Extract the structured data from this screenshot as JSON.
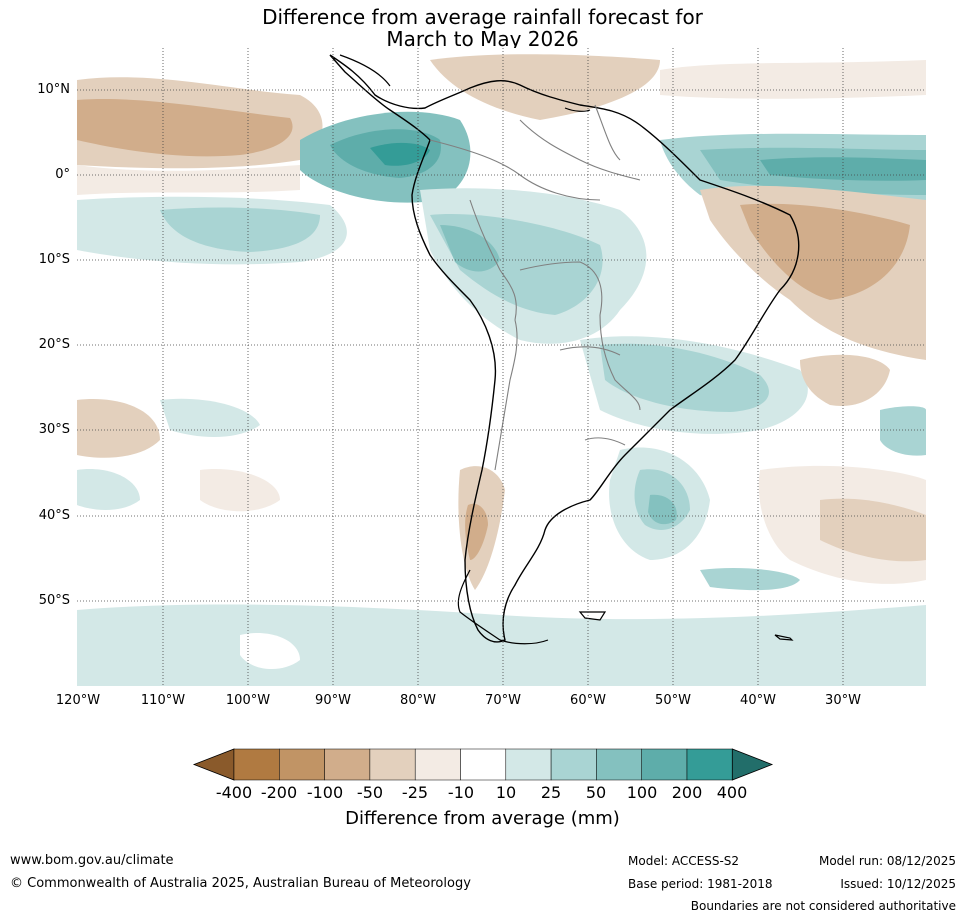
{
  "title_line1": "Difference from average rainfall forecast for",
  "title_line2": "March to May 2026",
  "lat_labels": [
    "10°N",
    "0°",
    "10°S",
    "20°S",
    "30°S",
    "40°S",
    "50°S"
  ],
  "lon_labels": [
    "120°W",
    "110°W",
    "100°W",
    "90°W",
    "80°W",
    "70°W",
    "60°W",
    "50°W",
    "40°W",
    "30°W"
  ],
  "colorbar": {
    "title": "Difference from average (mm)",
    "tick_labels": [
      "-400",
      "-200",
      "-100",
      "-50",
      "-25",
      "-10",
      "10",
      "25",
      "50",
      "100",
      "200",
      "400"
    ],
    "colors": [
      "#8a5a2b",
      "#b07a41",
      "#c19465",
      "#d1ad8b",
      "#e3d0bd",
      "#f3ebe4",
      "#ffffff",
      "#d3e8e7",
      "#a9d4d3",
      "#84c1bf",
      "#5eadaa",
      "#349c97",
      "#226e6a"
    ]
  },
  "footer": {
    "website": "www.bom.gov.au/climate",
    "copyright": "© Commonwealth of Australia 2025, Australian Bureau of Meteorology",
    "model": "Model: ACCESS-S2",
    "base_period": "Base period: 1981-2018",
    "model_run": "Model run: 08/12/2025",
    "issued": "Issued: 10/12/2025",
    "boundaries_note": "Boundaries are not considered authoritative"
  }
}
